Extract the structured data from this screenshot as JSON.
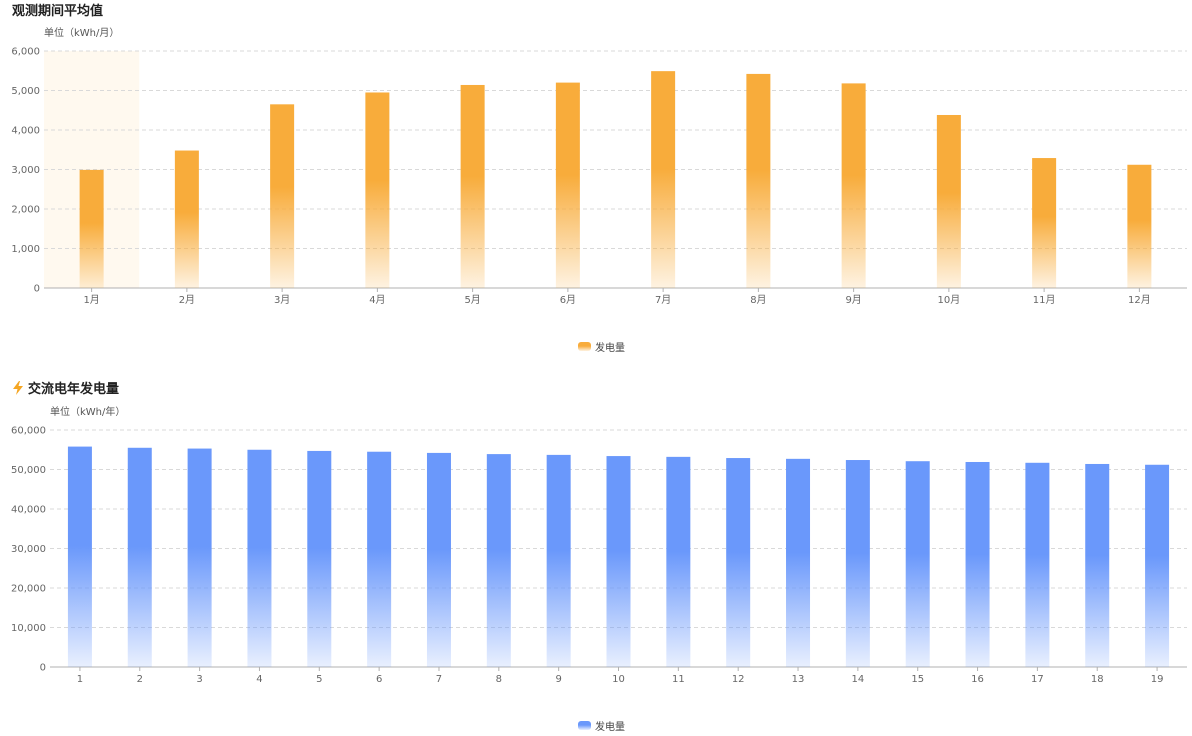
{
  "sections": {
    "monthly": {
      "title": "观测期间平均值"
    },
    "annual": {
      "title": "交流电年发电量",
      "icon": "lightning-bolt-icon"
    }
  },
  "colors": {
    "orange": "#f8ac3b",
    "blue": "#6a98fb",
    "highlight": "#fff9ef"
  },
  "chart_data": [
    {
      "type": "bar",
      "unit_label": "单位（kWh/月）",
      "categories": [
        "1月",
        "2月",
        "3月",
        "4月",
        "5月",
        "6月",
        "7月",
        "8月",
        "9月",
        "10月",
        "11月",
        "12月"
      ],
      "series": [
        {
          "name": "发电量",
          "values": [
            2990,
            3480,
            4650,
            4950,
            5140,
            5200,
            5490,
            5420,
            5180,
            4380,
            3290,
            3120
          ]
        }
      ],
      "ylim": [
        0,
        6000
      ],
      "yticks": [
        "0",
        "1,000",
        "2,000",
        "3,000",
        "4,000",
        "5,000",
        "6,000"
      ],
      "highlighted_category": "1月",
      "grid": true,
      "legend": "bottom-center",
      "color": "#f8ac3b"
    },
    {
      "type": "bar",
      "unit_label": "单位（kWh/年）",
      "categories": [
        "1",
        "2",
        "3",
        "4",
        "5",
        "6",
        "7",
        "8",
        "9",
        "10",
        "11",
        "12",
        "13",
        "14",
        "15",
        "16",
        "17",
        "18",
        "19"
      ],
      "series": [
        {
          "name": "发电量",
          "values": [
            55800,
            55500,
            55300,
            55000,
            54700,
            54500,
            54200,
            53900,
            53700,
            53400,
            53200,
            52900,
            52700,
            52400,
            52100,
            51900,
            51700,
            51400,
            51200
          ]
        }
      ],
      "ylim": [
        0,
        60000
      ],
      "yticks": [
        "0",
        "10,000",
        "20,000",
        "30,000",
        "40,000",
        "50,000",
        "60,000"
      ],
      "grid": true,
      "legend": "bottom-center",
      "color": "#6a98fb"
    }
  ]
}
